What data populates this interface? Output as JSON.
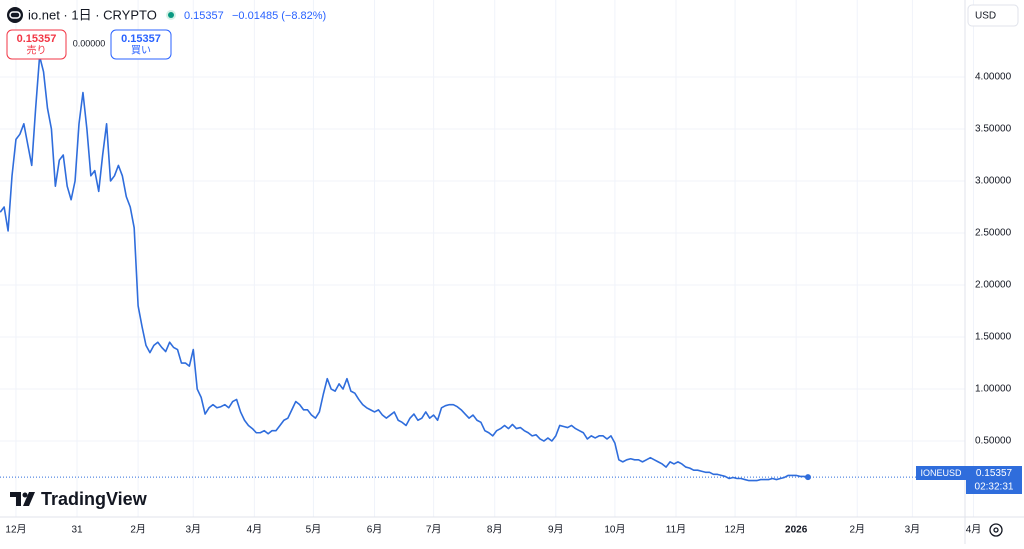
{
  "header": {
    "symbol": "io.net · 1日 · CRYPTO",
    "price": "0.15357",
    "change": "−0.01485 (−8.82%)"
  },
  "trade": {
    "sell_price": "0.15357",
    "sell_label": "売り",
    "spread": "0.00000",
    "buy_price": "0.15357",
    "buy_label": "買い"
  },
  "currency": "USD",
  "brand": "TradingView",
  "price_tag": {
    "price": "0.15357",
    "countdown": "02:32:31"
  },
  "chart_data": {
    "type": "line",
    "grid": true,
    "x": [
      -8,
      -6,
      -4,
      -2,
      0,
      2,
      4,
      6,
      8,
      10,
      12,
      14,
      16,
      18,
      20,
      22,
      24,
      26,
      28,
      30,
      32,
      34,
      36,
      38,
      40,
      42,
      44,
      46,
      48,
      50,
      52,
      54,
      56,
      58,
      60,
      62,
      64,
      66,
      68,
      70,
      72,
      74,
      76,
      78,
      80,
      82,
      84,
      86,
      88,
      90,
      92,
      94,
      96,
      98,
      100,
      102,
      104,
      106,
      108,
      110,
      112,
      114,
      116,
      118,
      120,
      122,
      124,
      126,
      128,
      130,
      132,
      134,
      136,
      138,
      140,
      142,
      144,
      146,
      148,
      150,
      152,
      154,
      156,
      158,
      160,
      162,
      164,
      166,
      168,
      170,
      172,
      174,
      176,
      178,
      180,
      182,
      184,
      186,
      188,
      190,
      192,
      194,
      196,
      198,
      200,
      202,
      204,
      206,
      208,
      210,
      212,
      214,
      216,
      218,
      220,
      222,
      224,
      226,
      228,
      230,
      232,
      234,
      236,
      238,
      240,
      242,
      244,
      246,
      248,
      250,
      252,
      254,
      256,
      258,
      260,
      262,
      264,
      266,
      268,
      270,
      272,
      274,
      276,
      278,
      280,
      282,
      284,
      286,
      288,
      290,
      292,
      294,
      296,
      298,
      300,
      302,
      304,
      306,
      308,
      310,
      312,
      314,
      316,
      318,
      320,
      322,
      324,
      326,
      328,
      330,
      332,
      334,
      336,
      338,
      340,
      342,
      344,
      346,
      348,
      350,
      352,
      354,
      356,
      358,
      360,
      362,
      364,
      366,
      368,
      370,
      372,
      374,
      376,
      378,
      380,
      382,
      384,
      386,
      388,
      390,
      392,
      394,
      396,
      398,
      400,
      402
    ],
    "series": [
      {
        "name": "IONEUSD",
        "color": "#2f6ddc",
        "values": [
          2.7,
          2.75,
          2.52,
          3.05,
          3.4,
          3.45,
          3.55,
          3.35,
          3.15,
          3.7,
          4.2,
          4.05,
          3.7,
          3.5,
          2.95,
          3.2,
          3.25,
          2.95,
          2.82,
          3.0,
          3.55,
          3.85,
          3.5,
          3.05,
          3.1,
          2.9,
          3.25,
          3.55,
          3.0,
          3.05,
          3.15,
          3.05,
          2.85,
          2.75,
          2.55,
          1.8,
          1.6,
          1.42,
          1.35,
          1.42,
          1.45,
          1.4,
          1.36,
          1.45,
          1.4,
          1.38,
          1.25,
          1.25,
          1.22,
          1.38,
          1.0,
          0.92,
          0.76,
          0.82,
          0.85,
          0.82,
          0.83,
          0.85,
          0.82,
          0.88,
          0.9,
          0.78,
          0.7,
          0.65,
          0.62,
          0.58,
          0.58,
          0.6,
          0.57,
          0.6,
          0.6,
          0.65,
          0.7,
          0.72,
          0.8,
          0.88,
          0.85,
          0.8,
          0.8,
          0.75,
          0.72,
          0.78,
          0.95,
          1.1,
          1.0,
          0.98,
          1.05,
          1.0,
          1.1,
          0.98,
          0.96,
          0.9,
          0.85,
          0.82,
          0.8,
          0.78,
          0.8,
          0.75,
          0.72,
          0.75,
          0.78,
          0.7,
          0.68,
          0.65,
          0.72,
          0.76,
          0.7,
          0.72,
          0.78,
          0.72,
          0.75,
          0.7,
          0.82,
          0.84,
          0.85,
          0.85,
          0.83,
          0.8,
          0.76,
          0.72,
          0.75,
          0.7,
          0.68,
          0.6,
          0.58,
          0.55,
          0.6,
          0.62,
          0.65,
          0.62,
          0.66,
          0.62,
          0.63,
          0.6,
          0.58,
          0.55,
          0.56,
          0.52,
          0.5,
          0.53,
          0.5,
          0.55,
          0.65,
          0.64,
          0.63,
          0.65,
          0.62,
          0.6,
          0.58,
          0.52,
          0.55,
          0.53,
          0.55,
          0.55,
          0.52,
          0.55,
          0.48,
          0.32,
          0.3,
          0.32,
          0.33,
          0.32,
          0.32,
          0.3,
          0.32,
          0.34,
          0.32,
          0.3,
          0.28,
          0.25,
          0.3,
          0.28,
          0.3,
          0.28,
          0.25,
          0.24,
          0.22,
          0.22,
          0.21,
          0.2,
          0.2,
          0.18,
          0.18,
          0.17,
          0.16,
          0.14,
          0.15,
          0.14,
          0.14,
          0.13,
          0.12,
          0.12,
          0.12,
          0.13,
          0.13,
          0.13,
          0.14,
          0.13,
          0.14,
          0.15,
          0.17,
          0.17,
          0.17,
          0.16,
          0.16,
          0.15357
        ]
      }
    ],
    "xlim": [
      -8.1,
      481.7
    ],
    "xticks": [
      {
        "value": 0,
        "label": "12月"
      },
      31,
      {
        "value": 62,
        "label": "2月"
      },
      {
        "value": 90,
        "label": "3月"
      },
      {
        "value": 121,
        "label": "4月"
      },
      {
        "value": 151,
        "label": "5月"
      },
      {
        "value": 182,
        "label": "6月"
      },
      {
        "value": 212,
        "label": "7月"
      },
      {
        "value": 243,
        "label": "8月"
      },
      {
        "value": 274,
        "label": "9月"
      },
      {
        "value": 304,
        "label": "10月"
      },
      {
        "value": 335,
        "label": "11月"
      },
      {
        "value": 365,
        "label": "12月"
      },
      {
        "value": 396,
        "label": "2026"
      },
      {
        "value": 427,
        "label": "2月"
      },
      {
        "value": 455,
        "label": "3月"
      },
      {
        "value": 486,
        "label": "4月"
      }
    ],
    "ylim": [
      -0.23,
      4.74
    ],
    "yticks": [
      {
        "value": 0.5,
        "label": "0.50000"
      },
      {
        "value": 1,
        "label": "1.00000"
      },
      {
        "value": 1.5,
        "label": "1.50000"
      },
      {
        "value": 2,
        "label": "2.00000"
      },
      {
        "value": 2.5,
        "label": "2.50000"
      },
      {
        "value": 3,
        "label": "3.00000"
      },
      {
        "value": 3.5,
        "label": "3.50000"
      },
      {
        "value": 4,
        "label": "4.00000"
      }
    ]
  }
}
